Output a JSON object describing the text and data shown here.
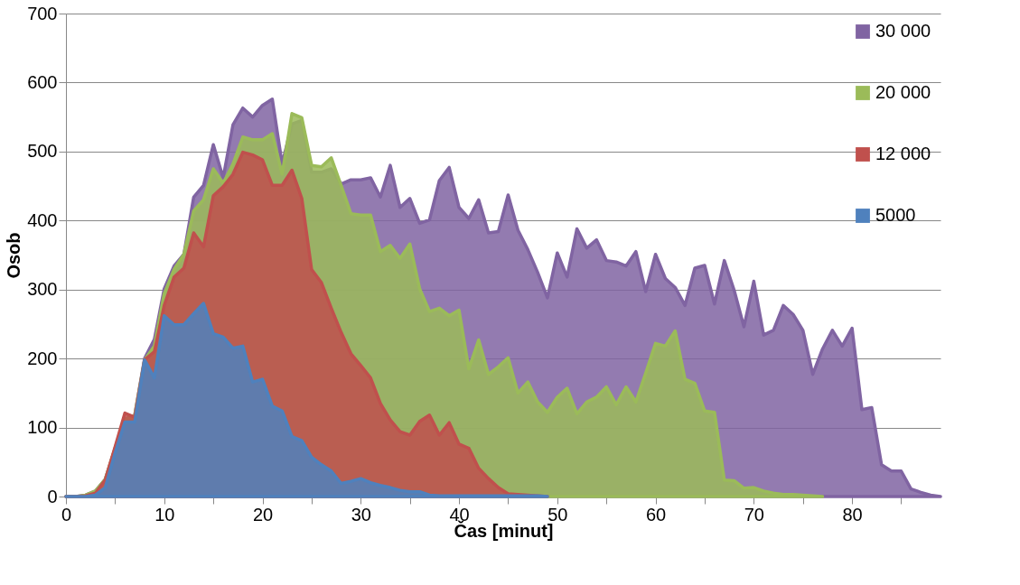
{
  "chart_data": {
    "type": "area",
    "xlabel": "Čas [minut]",
    "ylabel": "Osob",
    "xlim": [
      0,
      89
    ],
    "ylim": [
      0,
      700
    ],
    "xticks": [
      0,
      {
        "value": 5,
        "label": null
      },
      10,
      {
        "value": 15,
        "label": null
      },
      20,
      {
        "value": 25,
        "label": null
      },
      30,
      {
        "value": 35,
        "label": null
      },
      40,
      {
        "value": 45,
        "label": null
      },
      50,
      {
        "value": 55,
        "label": null
      },
      60,
      {
        "value": 65,
        "label": null
      },
      70,
      {
        "value": 75,
        "label": null
      },
      80,
      {
        "value": 85,
        "label": null
      }
    ],
    "yticks": [
      0,
      100,
      200,
      300,
      400,
      500,
      600,
      700
    ],
    "grid": "y",
    "legend": "top right",
    "series": [
      {
        "name": "30 000",
        "color": "#8064a2",
        "x": [
          0,
          1,
          2,
          3,
          4,
          5,
          6,
          7,
          8,
          9,
          10,
          11,
          12,
          13,
          14,
          15,
          16,
          17,
          18,
          19,
          20,
          21,
          22,
          23,
          24,
          25,
          26,
          27,
          28,
          29,
          30,
          31,
          32,
          33,
          34,
          35,
          36,
          37,
          38,
          39,
          40,
          41,
          42,
          43,
          44,
          45,
          46,
          47,
          48,
          49,
          50,
          51,
          52,
          53,
          54,
          55,
          56,
          57,
          58,
          59,
          60,
          61,
          62,
          63,
          64,
          65,
          66,
          67,
          68,
          69,
          70,
          71,
          72,
          73,
          74,
          75,
          76,
          77,
          78,
          79,
          80,
          81,
          82,
          83,
          84,
          85,
          86,
          87,
          88,
          89
        ],
        "values": [
          0,
          0,
          2,
          8,
          25,
          70,
          112,
          118,
          200,
          228,
          301,
          334,
          351,
          434,
          451,
          510,
          462,
          539,
          563,
          550,
          567,
          576,
          482,
          540,
          545,
          470,
          470,
          475,
          453,
          459,
          459,
          462,
          434,
          480,
          419,
          432,
          396,
          401,
          458,
          477,
          419,
          403,
          430,
          382,
          384,
          437,
          386,
          358,
          325,
          288,
          353,
          318,
          388,
          360,
          372,
          342,
          340,
          334,
          355,
          297,
          351,
          316,
          303,
          277,
          331,
          335,
          279,
          342,
          299,
          246,
          312,
          234,
          241,
          277,
          264,
          241,
          177,
          214,
          241,
          218,
          244,
          126,
          129,
          46,
          37,
          37,
          11,
          6,
          2,
          0
        ]
      },
      {
        "name": "20 000",
        "color": "#9bbb59",
        "x": [
          0,
          1,
          2,
          3,
          4,
          5,
          6,
          7,
          8,
          9,
          10,
          11,
          12,
          13,
          14,
          15,
          16,
          17,
          18,
          19,
          20,
          21,
          22,
          23,
          24,
          25,
          26,
          27,
          28,
          29,
          30,
          31,
          32,
          33,
          34,
          35,
          36,
          37,
          38,
          39,
          40,
          41,
          42,
          43,
          44,
          45,
          46,
          47,
          48,
          49,
          50,
          51,
          52,
          53,
          54,
          55,
          56,
          57,
          58,
          59,
          60,
          61,
          62,
          63,
          64,
          65,
          66,
          67,
          68,
          69,
          70,
          71,
          72,
          73,
          74,
          75,
          76,
          77
        ],
        "values": [
          0,
          0,
          2,
          8,
          25,
          70,
          112,
          118,
          198,
          218,
          294,
          329,
          351,
          414,
          430,
          475,
          454,
          482,
          521,
          517,
          517,
          526,
          467,
          555,
          549,
          480,
          478,
          491,
          451,
          410,
          408,
          408,
          355,
          364,
          345,
          366,
          301,
          268,
          273,
          262,
          270,
          185,
          227,
          177,
          188,
          201,
          150,
          166,
          137,
          122,
          144,
          157,
          120,
          137,
          144,
          159,
          133,
          159,
          137,
          179,
          222,
          218,
          240,
          170,
          164,
          124,
          122,
          24,
          23,
          12,
          13,
          8,
          5,
          3,
          3,
          2,
          1,
          0
        ]
      },
      {
        "name": "12 000",
        "color": "#c0504d",
        "x": [
          0,
          1,
          2,
          3,
          4,
          5,
          6,
          7,
          8,
          9,
          10,
          11,
          12,
          13,
          14,
          15,
          16,
          17,
          18,
          19,
          20,
          21,
          22,
          23,
          24,
          25,
          26,
          27,
          28,
          29,
          30,
          31,
          32,
          33,
          34,
          35,
          36,
          37,
          38,
          39,
          40,
          41,
          42,
          43,
          44,
          45,
          46,
          47,
          48,
          49
        ],
        "values": [
          0,
          0,
          1,
          5,
          24,
          72,
          121,
          115,
          198,
          210,
          277,
          318,
          331,
          382,
          362,
          436,
          449,
          467,
          499,
          495,
          488,
          451,
          451,
          473,
          432,
          329,
          310,
          273,
          238,
          207,
          190,
          172,
          135,
          111,
          94,
          89,
          109,
          118,
          89,
          107,
          76,
          70,
          41,
          26,
          13,
          4,
          3,
          2,
          1,
          0
        ]
      },
      {
        "name": "5000",
        "color": "#4f81bd",
        "x": [
          0,
          1,
          2,
          3,
          4,
          5,
          6,
          7,
          8,
          9,
          10,
          11,
          12,
          13,
          14,
          15,
          16,
          17,
          18,
          19,
          20,
          21,
          22,
          23,
          24,
          25,
          26,
          27,
          28,
          29,
          30,
          31,
          32,
          33,
          34,
          35,
          36,
          37,
          38,
          39,
          40,
          41,
          42,
          43,
          44,
          45,
          46,
          47,
          48,
          49
        ],
        "values": [
          0,
          0,
          0,
          2,
          13,
          63,
          108,
          108,
          198,
          172,
          262,
          249,
          249,
          265,
          280,
          236,
          231,
          215,
          218,
          166,
          170,
          131,
          124,
          87,
          81,
          57,
          46,
          37,
          19,
          22,
          26,
          20,
          16,
          13,
          9,
          7,
          7,
          2,
          1,
          1,
          1,
          1,
          1,
          1,
          1,
          1,
          1,
          1,
          1,
          0
        ]
      }
    ]
  }
}
